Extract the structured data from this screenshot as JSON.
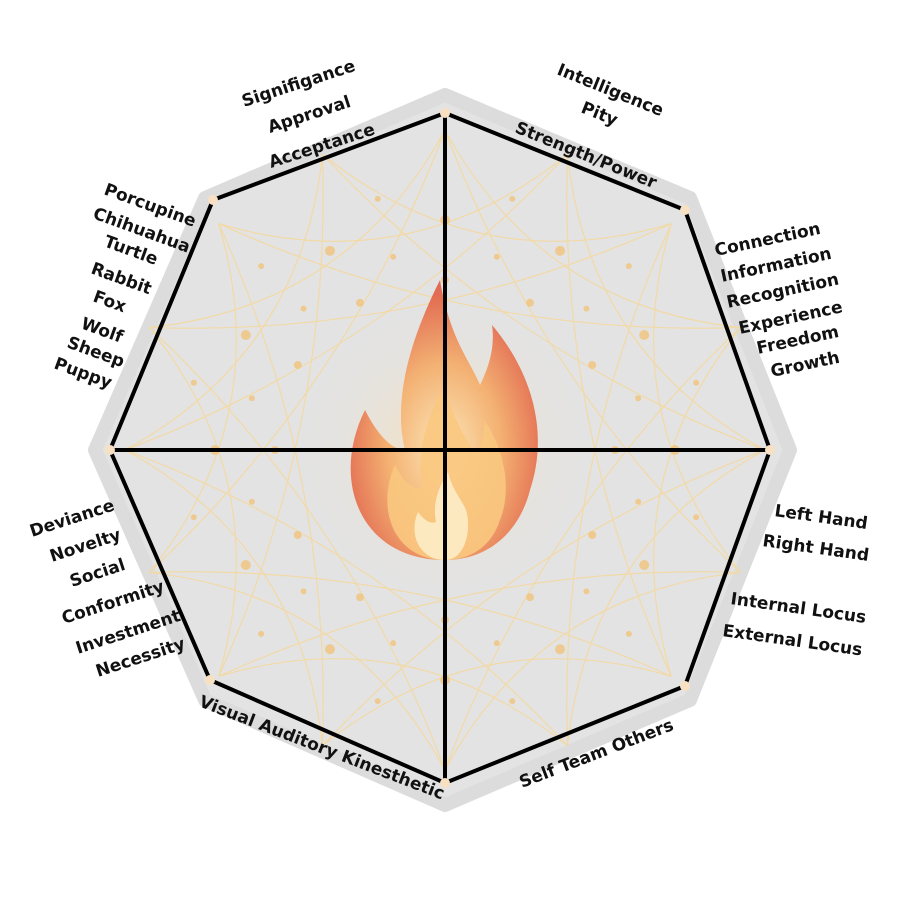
{
  "colors": {
    "octagon_fill": "#e3e3e3",
    "octagon_stroke": "#000000",
    "pattern_line": "#f4d9a0",
    "flame_outer": "#e8643a",
    "flame_mid": "#f19a52",
    "flame_inner": "#f7c98a",
    "dots": "#f3c47c"
  },
  "icons": {
    "center": "flame-icon"
  },
  "labels": {
    "top_left": [
      "Signifigance",
      "Approval",
      "Acceptance"
    ],
    "top_right": [
      "Intelligence",
      "Pity",
      "Strength/Power"
    ],
    "upper_left": [
      "Porcupine",
      "Chihuahua",
      "Turtle",
      "Rabbit",
      "Fox",
      "Wolf",
      "Sheep",
      "Puppy"
    ],
    "upper_right": [
      "Connection",
      "Information",
      "Recognition",
      "Experience",
      "Freedom",
      "Growth"
    ],
    "lower_left": [
      "Deviance",
      "Novelty",
      "Social",
      "Conformity",
      "Investment",
      "Necessity"
    ],
    "lower_right_hand": [
      "Left Hand",
      "Right Hand"
    ],
    "lower_right_locus": [
      "Internal Locus",
      "External Locus"
    ],
    "bottom_left": [
      "Visual  Auditory Kinesthetic"
    ],
    "bottom_right": [
      "Self Team Others"
    ]
  }
}
